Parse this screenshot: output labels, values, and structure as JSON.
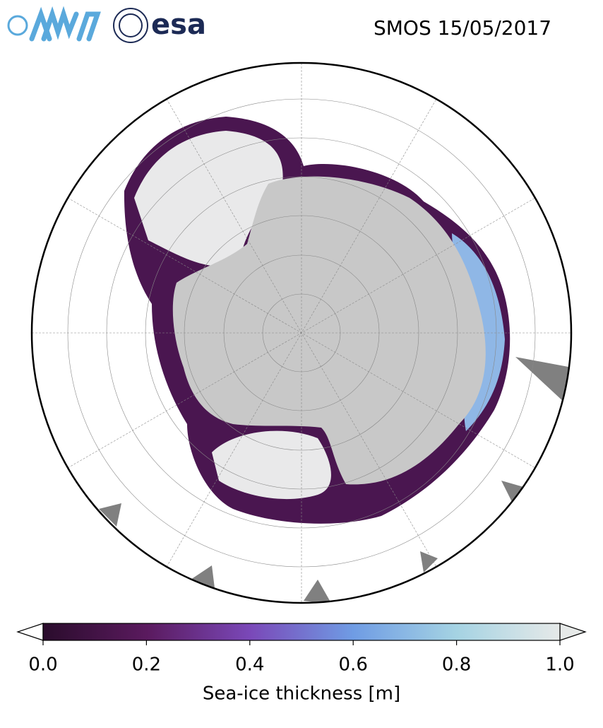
{
  "header": {
    "logos": [
      "esa"
    ],
    "title": "SMOS 15/05/2017"
  },
  "colorbar": {
    "label": "Sea-ice thickness [m]",
    "lim": [
      0,
      1
    ],
    "ticks": [
      {
        "value": 0,
        "label": "0.0"
      },
      0.2,
      0.4,
      0.6,
      0.8,
      {
        "value": 1,
        "label": "1.0"
      }
    ],
    "colormap": [
      {
        "value": 0,
        "color": "#2a0c2c"
      },
      {
        "value": 0.2,
        "color": "#5a1a5e"
      },
      {
        "value": 0.4,
        "color": "#7a48b8"
      },
      {
        "value": 0.6,
        "color": "#6f9ce4"
      },
      {
        "value": 0.8,
        "color": "#a5d3e3"
      },
      {
        "value": 1,
        "color": "#e6e9e8"
      }
    ]
  }
}
